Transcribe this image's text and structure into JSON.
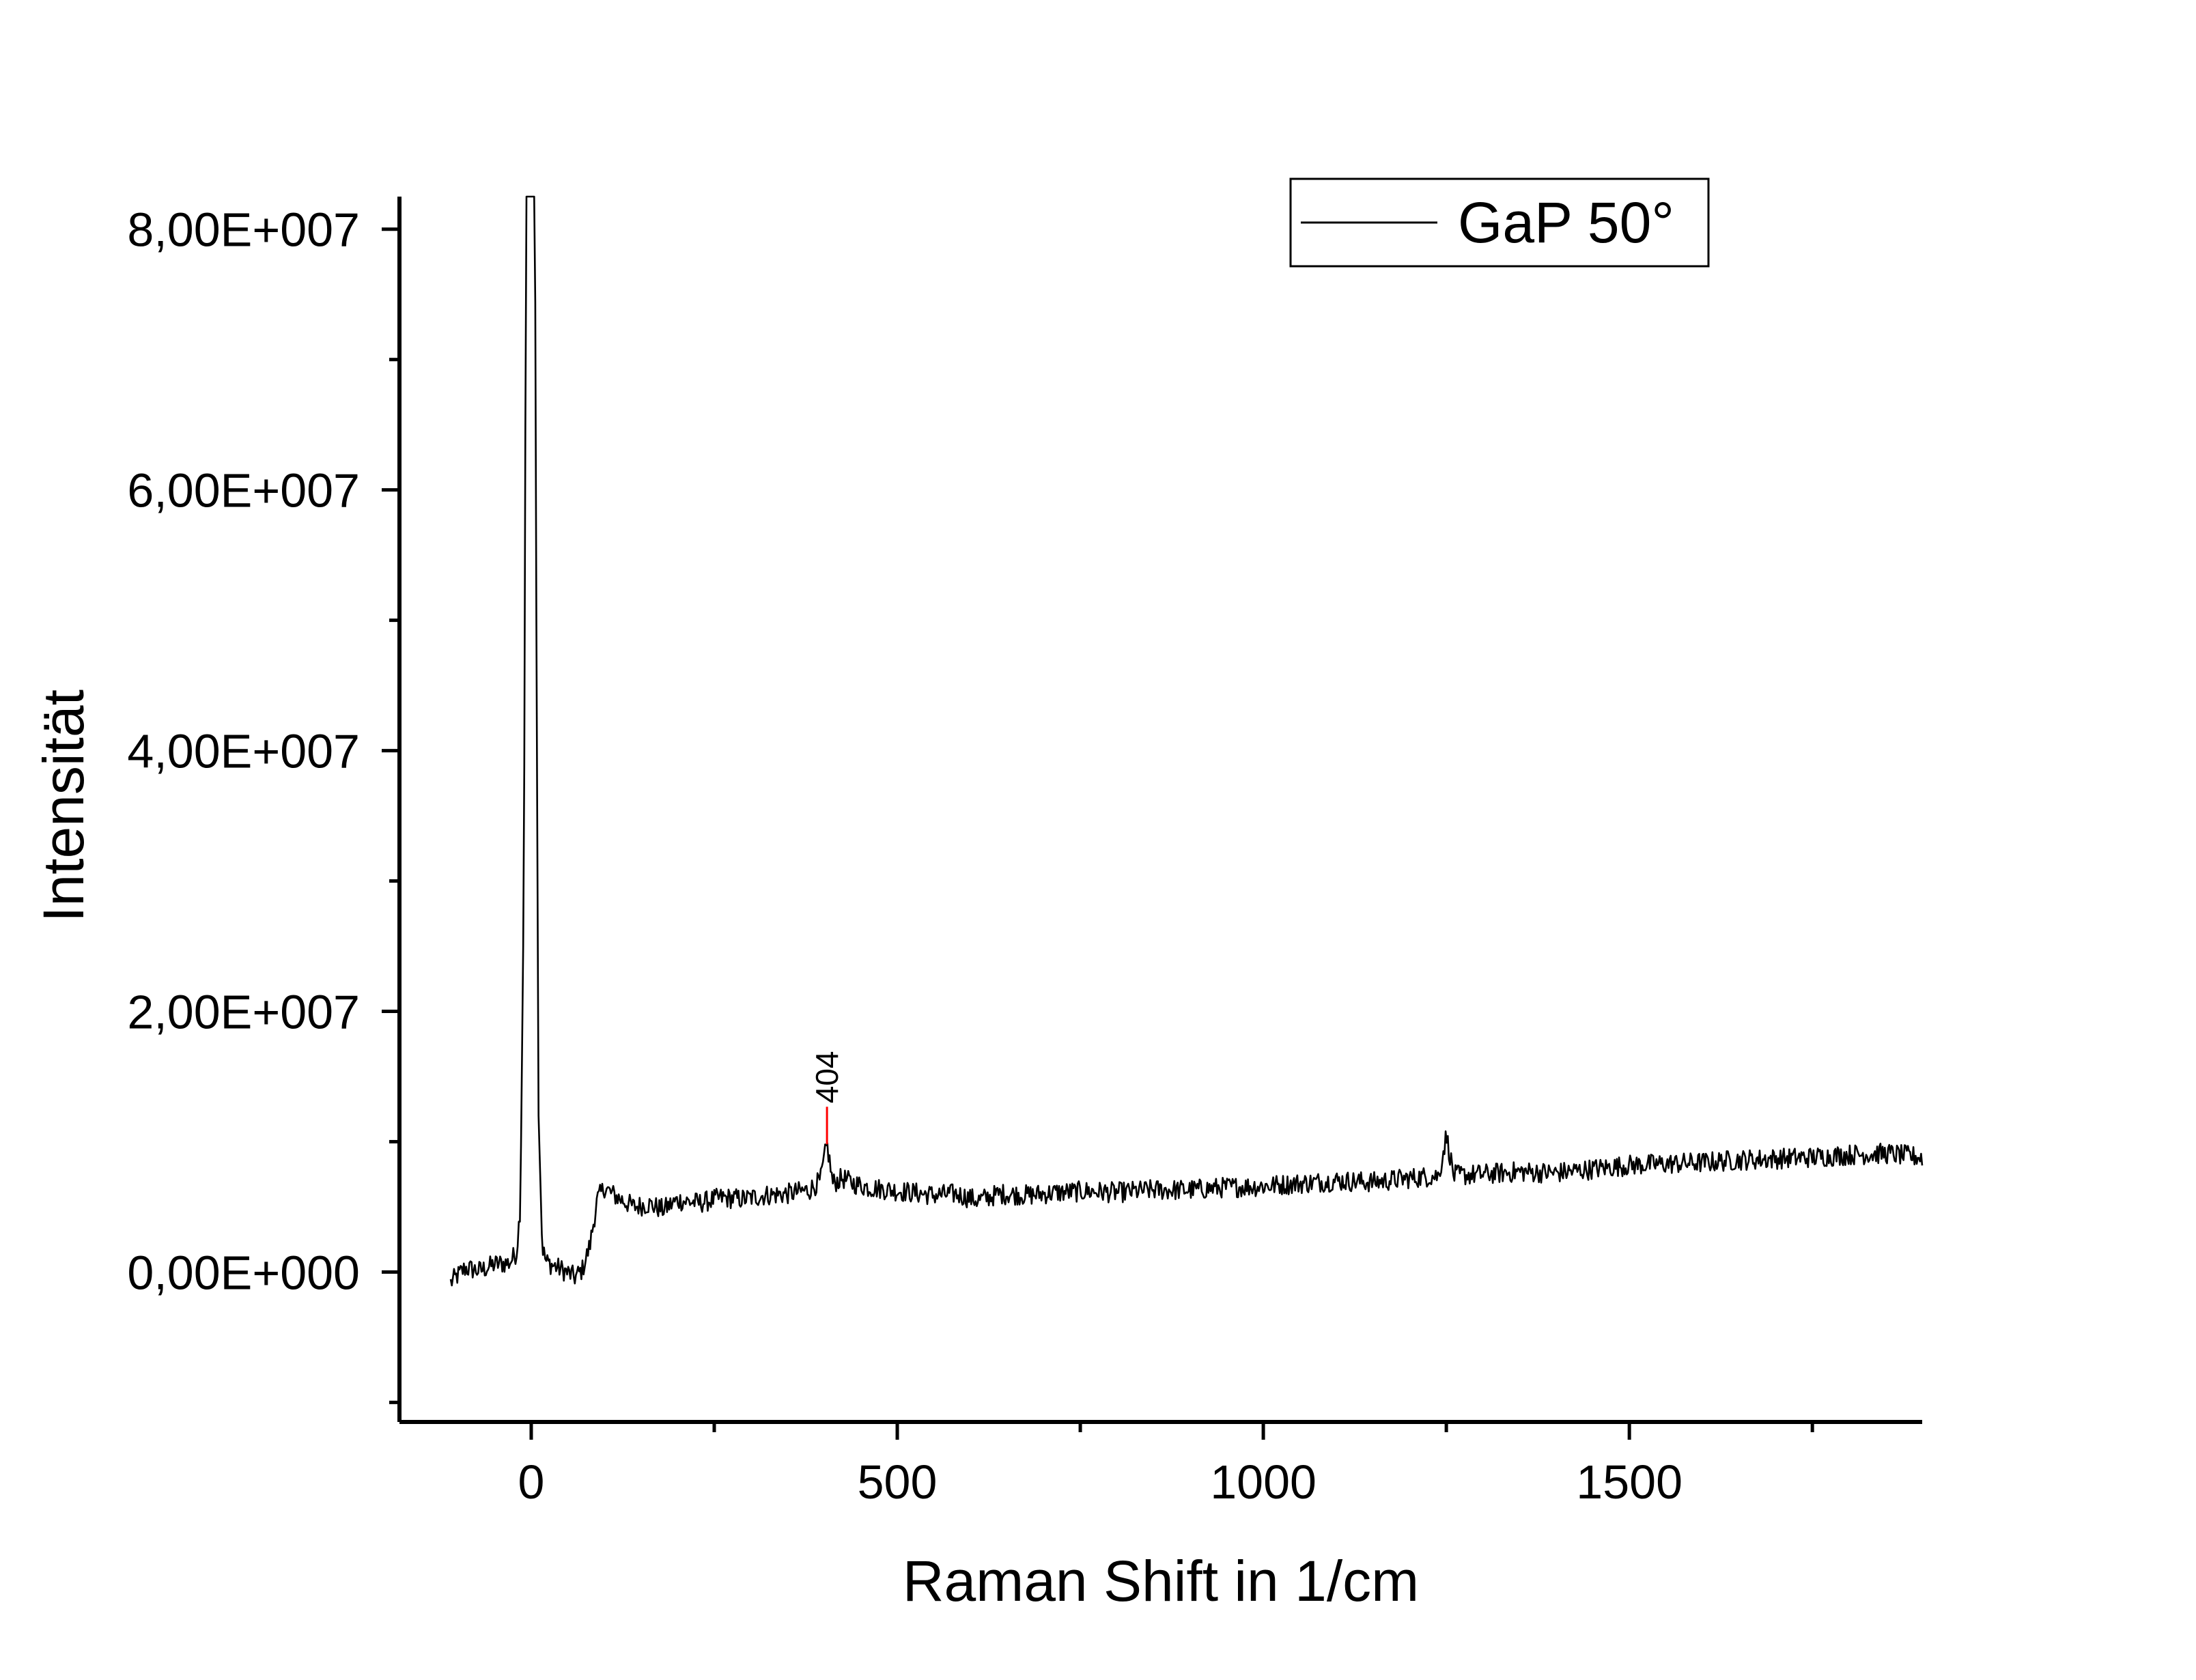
{
  "chart_data": {
    "type": "line",
    "title": "",
    "xlabel": "Raman Shift in 1/cm",
    "ylabel": "Intensität",
    "xlim": [
      -180,
      1900
    ],
    "ylim": [
      -11500000,
      82500000
    ],
    "x_ticks": [
      0,
      500,
      1000,
      1500
    ],
    "x_tick_labels": [
      "0",
      "500",
      "1000",
      "1500"
    ],
    "x_minor_ticks": [
      250,
      750,
      1250,
      1750
    ],
    "y_ticks": [
      0,
      20000000,
      40000000,
      60000000,
      80000000
    ],
    "y_tick_labels": [
      "0,00E+000",
      "2,00E+007",
      "4,00E+007",
      "6,00E+007",
      "8,00E+007"
    ],
    "y_minor_ticks": [
      -10000000,
      10000000,
      30000000,
      50000000,
      70000000
    ],
    "grid": false,
    "legend_position": "top-right",
    "series": [
      {
        "name": "GaP 50°",
        "color": "#000000",
        "x": [
          -110,
          -90,
          -70,
          -50,
          -30,
          -20,
          -15,
          -10,
          -7,
          -5,
          -3,
          -1,
          1,
          3,
          5,
          7,
          10,
          15,
          20,
          30,
          45,
          60,
          70,
          80,
          90,
          100,
          110,
          125,
          140,
          160,
          180,
          200,
          230,
          260,
          290,
          320,
          350,
          380,
          395,
          404,
          412,
          425,
          440,
          460,
          490,
          520,
          550,
          580,
          610,
          640,
          680,
          720,
          760,
          800,
          850,
          900,
          950,
          1000,
          1050,
          1100,
          1150,
          1200,
          1240,
          1250,
          1260,
          1300,
          1350,
          1400,
          1450,
          1500,
          1550,
          1600,
          1650,
          1700,
          1750,
          1800,
          1850,
          1900
        ],
        "y": [
          -800000,
          300000,
          100000,
          600000,
          700000,
          1500000,
          5000000,
          30000000,
          82500000,
          82500000,
          82500000,
          82500000,
          82500000,
          82500000,
          82500000,
          50000000,
          12000000,
          2000000,
          800000,
          500000,
          100000,
          -400000,
          200000,
          2000000,
          5500000,
          6500000,
          6000000,
          5500000,
          5000000,
          5200000,
          4800000,
          5500000,
          5300000,
          5700000,
          5600000,
          5900000,
          6000000,
          6300000,
          7000000,
          9800000,
          6800000,
          7200000,
          6800000,
          6500000,
          6300000,
          6100000,
          5900000,
          6000000,
          5500000,
          6000000,
          5900000,
          6100000,
          6200000,
          6100000,
          6300000,
          6300000,
          6500000,
          6600000,
          6800000,
          7000000,
          6900000,
          7200000,
          7400000,
          10500000,
          7400000,
          7500000,
          7700000,
          7600000,
          7900000,
          8200000,
          8300000,
          8400000,
          8600000,
          8700000,
          8800000,
          9000000,
          9100000,
          8800000
        ]
      }
    ],
    "annotations": [
      {
        "text": "404",
        "x": 404,
        "y": 9800000,
        "marker_color": "#ff0000"
      }
    ]
  }
}
